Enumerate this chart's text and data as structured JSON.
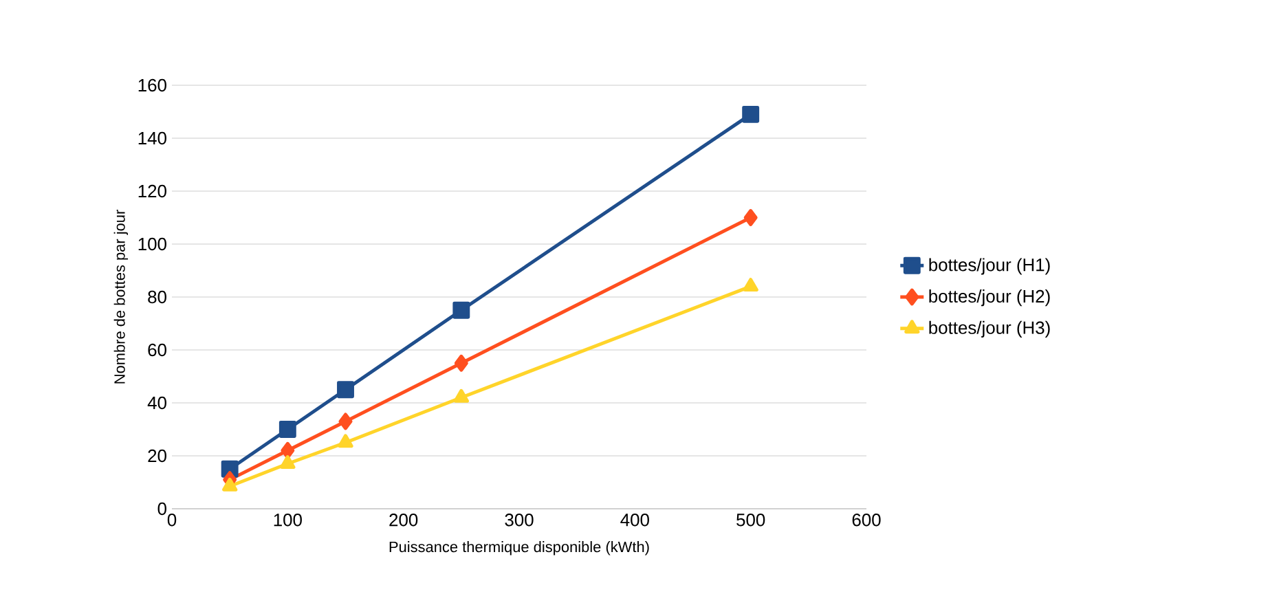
{
  "chart_data": {
    "type": "line",
    "xlabel": "Puissance thermique disponible (kWth)",
    "ylabel": "Nombre de bottes par jour",
    "x": [
      50,
      100,
      150,
      250,
      500
    ],
    "series": [
      {
        "name": "bottes/jour (H1)",
        "color": "#1f4e8c",
        "marker": "square",
        "values": [
          15,
          30,
          45,
          75,
          149
        ]
      },
      {
        "name": "bottes/jour (H2)",
        "color": "#ff4f1f",
        "marker": "diamond",
        "values": [
          11,
          22,
          33,
          55,
          110
        ]
      },
      {
        "name": "bottes/jour (H3)",
        "color": "#ffd42a",
        "marker": "triangle",
        "values": [
          8.5,
          17,
          25,
          42,
          84
        ]
      }
    ],
    "xlim": [
      0,
      600
    ],
    "xticks": [
      0,
      100,
      200,
      300,
      400,
      500,
      600
    ],
    "ylim": [
      0,
      160
    ],
    "yticks": [
      0,
      20,
      40,
      60,
      80,
      100,
      120,
      140,
      160
    ],
    "grid": "y",
    "legend": "right",
    "line_style": "solid"
  }
}
